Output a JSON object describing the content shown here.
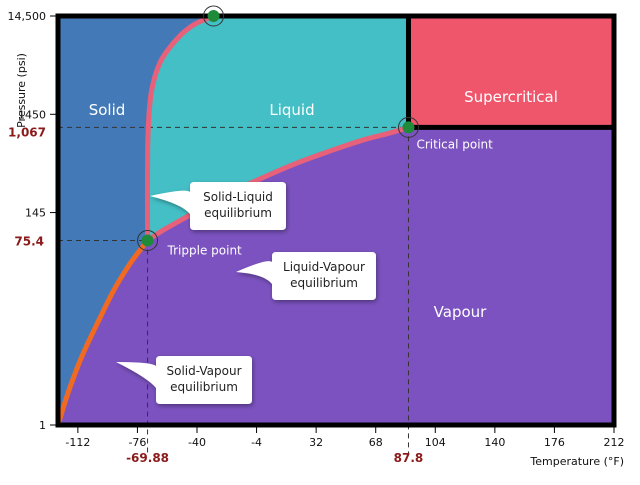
{
  "chart_data": {
    "type": "area",
    "title": "",
    "xlabel": "Temperature (°F)",
    "ylabel": "Pressure (psi)",
    "x_ticks": [
      -112,
      -76,
      -40,
      -4,
      32,
      68,
      104,
      140,
      176,
      212
    ],
    "y_ticks": [
      {
        "value": 1,
        "label": "1"
      },
      {
        "value": 145,
        "label": "145"
      },
      {
        "value": 1450,
        "label": "1450"
      },
      {
        "value": 14500,
        "label": "14,500"
      }
    ],
    "xlim": [
      -124,
      212
    ],
    "y_scale": "log",
    "ylim": [
      1,
      14500
    ],
    "grid": false,
    "regions": [
      {
        "name": "Solid",
        "color": "#4479b8"
      },
      {
        "name": "Liquid",
        "color": "#43bfc5"
      },
      {
        "name": "Supercritical",
        "color": "#f0566b"
      },
      {
        "name": "Vapour",
        "color": "#7b52bf"
      }
    ],
    "curve_color": "#e7617a",
    "low_curve_color": "#f06a22",
    "marker_color": "#1e8a3a",
    "triple_point": {
      "label": "Tripple point",
      "x": -69.88,
      "y": 75.4,
      "x_label": "-69.88",
      "y_label": "75.4"
    },
    "critical_point": {
      "label": "Critical point",
      "x": 87.8,
      "y": 1067,
      "x_label": "87.8",
      "y_label": "1,067"
    },
    "top_point": {
      "x": -30,
      "y": 14500
    },
    "sublimation_curve": [
      {
        "x": -124,
        "y": 1
      },
      {
        "x": -118,
        "y": 2.1
      },
      {
        "x": -110,
        "y": 4.8
      },
      {
        "x": -100,
        "y": 11
      },
      {
        "x": -90,
        "y": 24
      },
      {
        "x": -80,
        "y": 45
      },
      {
        "x": -69.88,
        "y": 75.4
      }
    ],
    "vaporization_curve": [
      {
        "x": -69.88,
        "y": 75.4
      },
      {
        "x": -60,
        "y": 97
      },
      {
        "x": -40,
        "y": 150
      },
      {
        "x": -20,
        "y": 230
      },
      {
        "x": 0,
        "y": 330
      },
      {
        "x": 20,
        "y": 460
      },
      {
        "x": 40,
        "y": 610
      },
      {
        "x": 60,
        "y": 790
      },
      {
        "x": 75,
        "y": 920
      },
      {
        "x": 87.8,
        "y": 1067
      }
    ],
    "melting_curve": [
      {
        "x": -69.88,
        "y": 75.4
      },
      {
        "x": -69.9,
        "y": 300
      },
      {
        "x": -69.5,
        "y": 1000
      },
      {
        "x": -67.5,
        "y": 2500
      },
      {
        "x": -62,
        "y": 5000
      },
      {
        "x": -52,
        "y": 8500
      },
      {
        "x": -42,
        "y": 11800
      },
      {
        "x": -30,
        "y": 14500
      }
    ],
    "annotations": [
      {
        "name": "callout-solid-liquid",
        "lines": [
          "Solid-Liquid",
          "equilibrium"
        ]
      },
      {
        "name": "callout-liquid-vapour",
        "lines": [
          "Liquid-Vapour",
          "equilibrium"
        ]
      },
      {
        "name": "callout-solid-vapour",
        "lines": [
          "Solid-Vapour",
          "equilibrium"
        ]
      }
    ]
  }
}
